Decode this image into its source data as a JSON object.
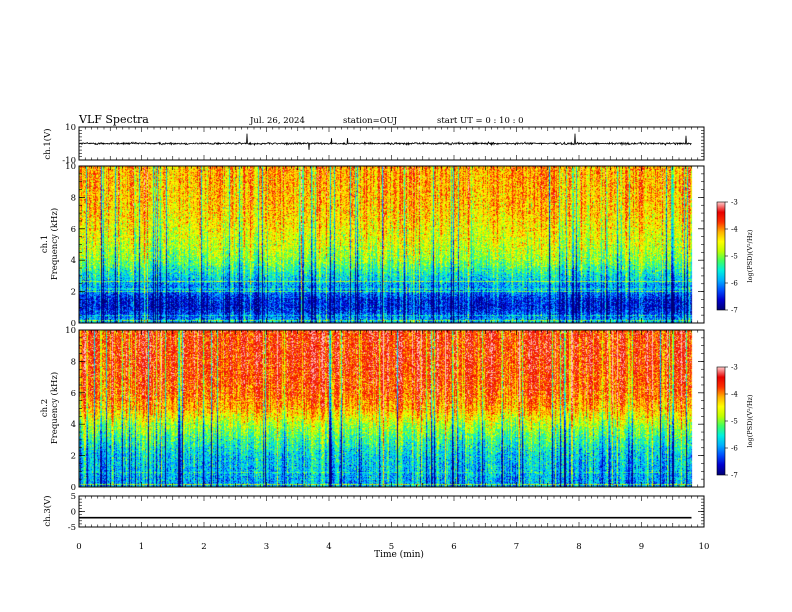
{
  "header": {
    "title": "VLF Spectra",
    "date": "Jul. 26, 2024",
    "station": "station=OUJ",
    "start": "start UT =  0 : 10 : 0"
  },
  "colors": {
    "palette": [
      "#000078",
      "#0000d0",
      "#0050ff",
      "#00b0ff",
      "#00f0e0",
      "#40ff60",
      "#c0ff00",
      "#ffff00",
      "#ffb000",
      "#ff3000",
      "#e80000",
      "#ffc0c0"
    ],
    "background": "#ffffff",
    "ink": "#000000"
  },
  "chart_data": [
    {
      "type": "line",
      "panel": "ch1-waveform",
      "ylabel": "ch.1(V)",
      "ylim": [
        -10,
        10
      ],
      "yticks": [
        10,
        -10
      ],
      "xlim": [
        0,
        10
      ],
      "series": [
        {
          "values_description_free": true,
          "level": 0.0,
          "noise_amplitude": 1.0,
          "spike_amplitude": 4.5,
          "x_end": 9.8
        }
      ]
    },
    {
      "type": "heatmap",
      "panel": "ch1-spectrogram",
      "ylabel_1": "ch.1",
      "ylabel_2": "Frequency (kHz)",
      "ylim": [
        0,
        10
      ],
      "yticks": [
        0,
        2,
        4,
        6,
        8,
        10
      ],
      "xlim": [
        0,
        10
      ],
      "x_end": 9.8,
      "colorbar": {
        "label": "log(PSD)(V²/Hz)",
        "range": [
          -7,
          -3
        ],
        "ticks": [
          -3,
          -4,
          -5,
          -6,
          -7
        ]
      },
      "profile_khz": [
        0.0,
        0.5,
        1.0,
        1.5,
        2.0,
        2.5,
        3.0,
        3.5,
        4.0,
        5.0,
        6.0,
        7.0,
        8.0,
        10.0
      ],
      "profile_logpsd": [
        -5.8,
        -6.3,
        -6.6,
        -6.5,
        -6.1,
        -5.9,
        -5.6,
        -5.3,
        -5.0,
        -4.7,
        -4.5,
        -4.3,
        -4.2,
        -4.1
      ]
    },
    {
      "type": "heatmap",
      "panel": "ch2-spectrogram",
      "ylabel_1": "ch.2",
      "ylabel_2": "Frequency (kHz)",
      "ylim": [
        0,
        10
      ],
      "yticks": [
        0,
        2,
        4,
        6,
        8,
        10
      ],
      "xlim": [
        0,
        10
      ],
      "x_end": 9.8,
      "colorbar": {
        "label": "log(PSD)(V²/Hz)",
        "range": [
          -7,
          -3
        ],
        "ticks": [
          -3,
          -4,
          -5,
          -6,
          -7
        ]
      },
      "profile_khz": [
        0.0,
        0.5,
        1.0,
        2.0,
        3.0,
        4.0,
        5.0,
        6.0,
        7.0,
        8.0,
        10.0
      ],
      "profile_logpsd": [
        -6.0,
        -5.9,
        -5.8,
        -5.7,
        -5.3,
        -4.8,
        -4.1,
        -3.8,
        -3.7,
        -3.6,
        -3.6
      ]
    },
    {
      "type": "line",
      "panel": "ch3-waveform",
      "ylabel": "ch.3(V)",
      "ylim": [
        -5,
        5
      ],
      "yticks": [
        5,
        0,
        -5
      ],
      "xlim": [
        0,
        10
      ],
      "series": [
        {
          "level": -2.0,
          "x_end": 9.8
        }
      ]
    }
  ],
  "xaxis": {
    "label": "Time (min)",
    "ticks": [
      "0",
      "1",
      "2",
      "3",
      "4",
      "5",
      "6",
      "7",
      "8",
      "9",
      "10"
    ]
  }
}
